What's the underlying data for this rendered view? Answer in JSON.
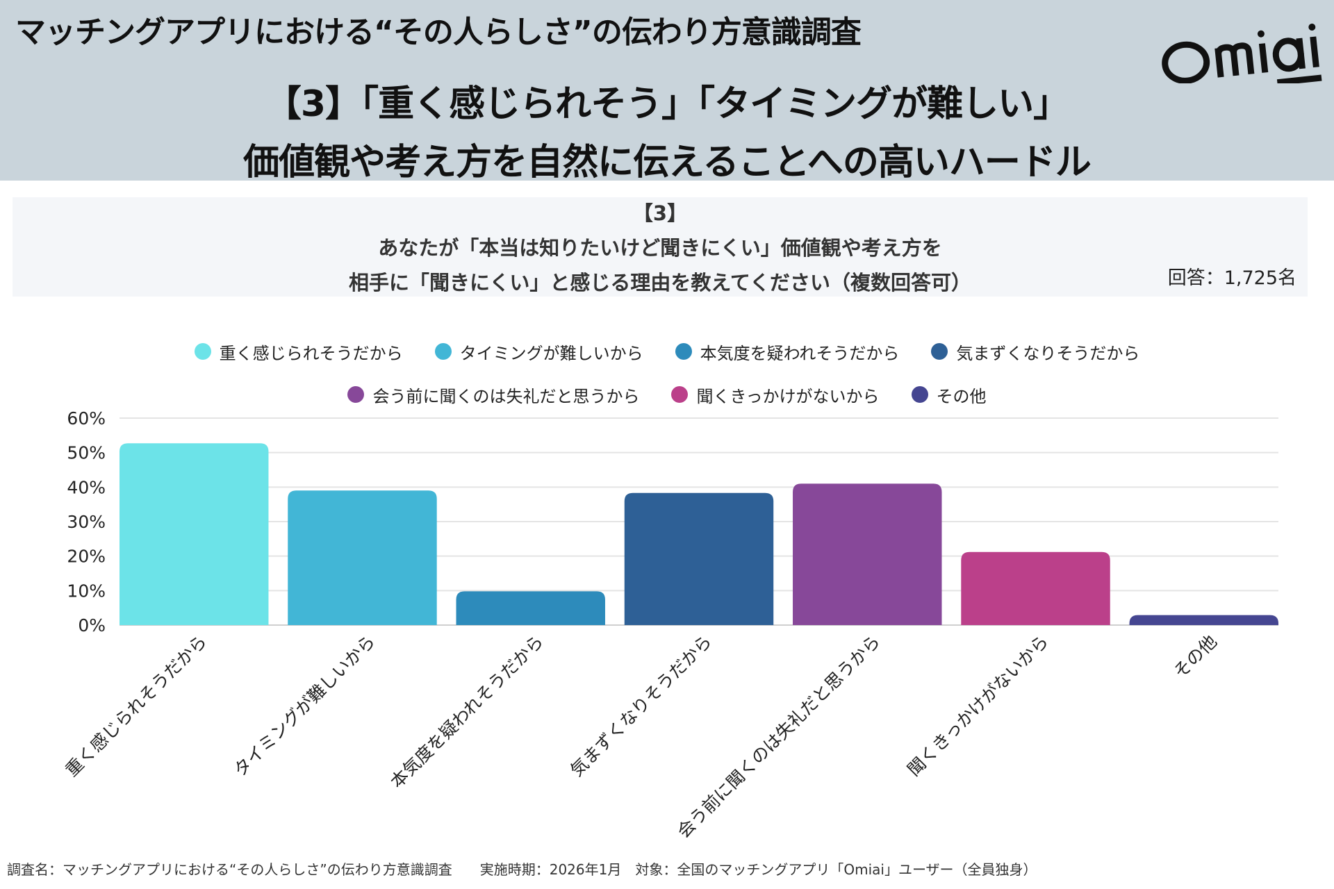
{
  "header": {
    "survey_title": "マッチングアプリにおける“その人らしさ”の伝わり方意識調査",
    "headline_1": "【3】「重く感じられそう」「タイミングが難しい」",
    "headline_2": "価値観や考え方を自然に伝えることへの高いハードル",
    "logo": "Omiai"
  },
  "question": {
    "number": "【3】",
    "line_1": "あなたが「本当は知りたいけど聞きにくい」価値観や考え方を",
    "line_2": "相手に「聞きにくい」と感じる理由を教えてください（複数回答可）",
    "respondents": "回答：1,725名"
  },
  "chart_data": {
    "type": "bar",
    "categories": [
      "重く感じられそうだから",
      "タイミングが難しいから",
      "本気度を疑われそうだから",
      "気まずくなりそうだから",
      "会う前に聞くのは失礼だと思うから",
      "聞くきっかけがないから",
      "その他"
    ],
    "values": [
      52.7,
      39.0,
      9.8,
      38.3,
      41.0,
      21.2,
      2.9
    ],
    "colors": [
      "#6ce3e8",
      "#42b6d6",
      "#2d8bbb",
      "#2e6096",
      "#874899",
      "#bb408a",
      "#454691"
    ],
    "ylim": [
      0,
      60
    ],
    "yticks": [
      "0%",
      "10%",
      "20%",
      "30%",
      "40%",
      "50%",
      "60%"
    ],
    "grid": true,
    "legend_placement": "top",
    "unit": "%"
  },
  "footer": "調査名：マッチングアプリにおける“その人らしさ”の伝わり方意識調査　　実施時期：2026年1月　対象：全国のマッチングアプリ「Omiai」ユーザー（全員独身）"
}
